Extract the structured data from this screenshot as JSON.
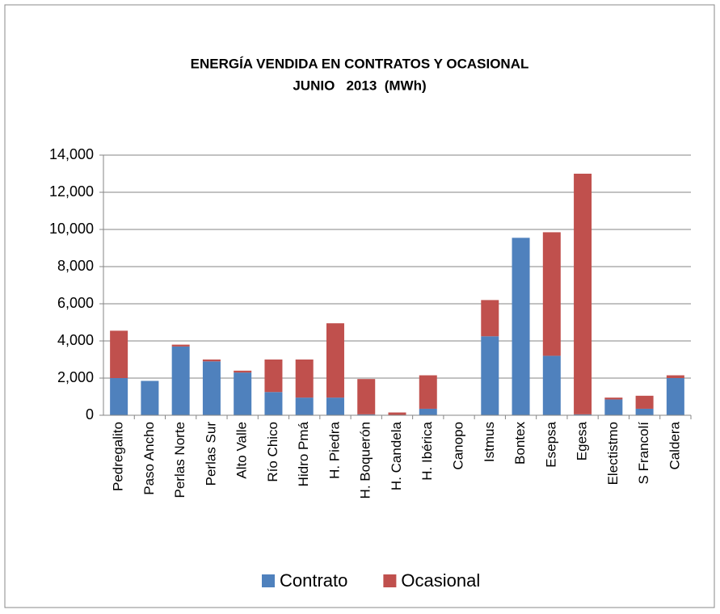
{
  "chart_data": {
    "type": "stacked_bar",
    "title": "ENERGÍA VENDIDA EN CONTRATOS Y OCASIONAL",
    "subtitle": "JUNIO   2013  (MWh)",
    "categories": [
      "Pedregalito",
      "Paso Ancho",
      "Perlas Norte",
      "Perlas Sur",
      "Alto Valle",
      "Río Chico",
      "Hidro Pmá",
      "H. Piedra",
      "H. Boquerón",
      "H. Candela",
      "H. Ibérica",
      "Canopo",
      "Istmus",
      "Bontex",
      "Esepsa",
      "Egesa",
      "Electistmo",
      "S Francolí",
      "Caldera"
    ],
    "series": [
      {
        "name": "Contrato",
        "color": "#4f81bd",
        "values": [
          2000,
          1850,
          3700,
          2900,
          2300,
          1250,
          950,
          950,
          50,
          0,
          350,
          0,
          4250,
          9550,
          3200,
          50,
          850,
          350,
          2000
        ]
      },
      {
        "name": "Ocasional",
        "color": "#c0504d",
        "values": [
          2550,
          0,
          100,
          100,
          100,
          1750,
          2050,
          4000,
          1900,
          150,
          1800,
          0,
          1950,
          0,
          6650,
          12950,
          100,
          700,
          150
        ]
      }
    ],
    "ylim": [
      0,
      14000
    ],
    "yticks": [
      0,
      {
        "value": 2000,
        "label": "2,000"
      },
      {
        "value": 4000,
        "label": "4,000"
      },
      {
        "value": 6000,
        "label": "6,000"
      },
      {
        "value": 8000,
        "label": "8,000"
      },
      {
        "value": 10000,
        "label": "10,000"
      },
      {
        "value": 12000,
        "label": "12,000"
      },
      {
        "value": 14000,
        "label": "14,000"
      }
    ],
    "grid": true,
    "legend": "bottom"
  }
}
